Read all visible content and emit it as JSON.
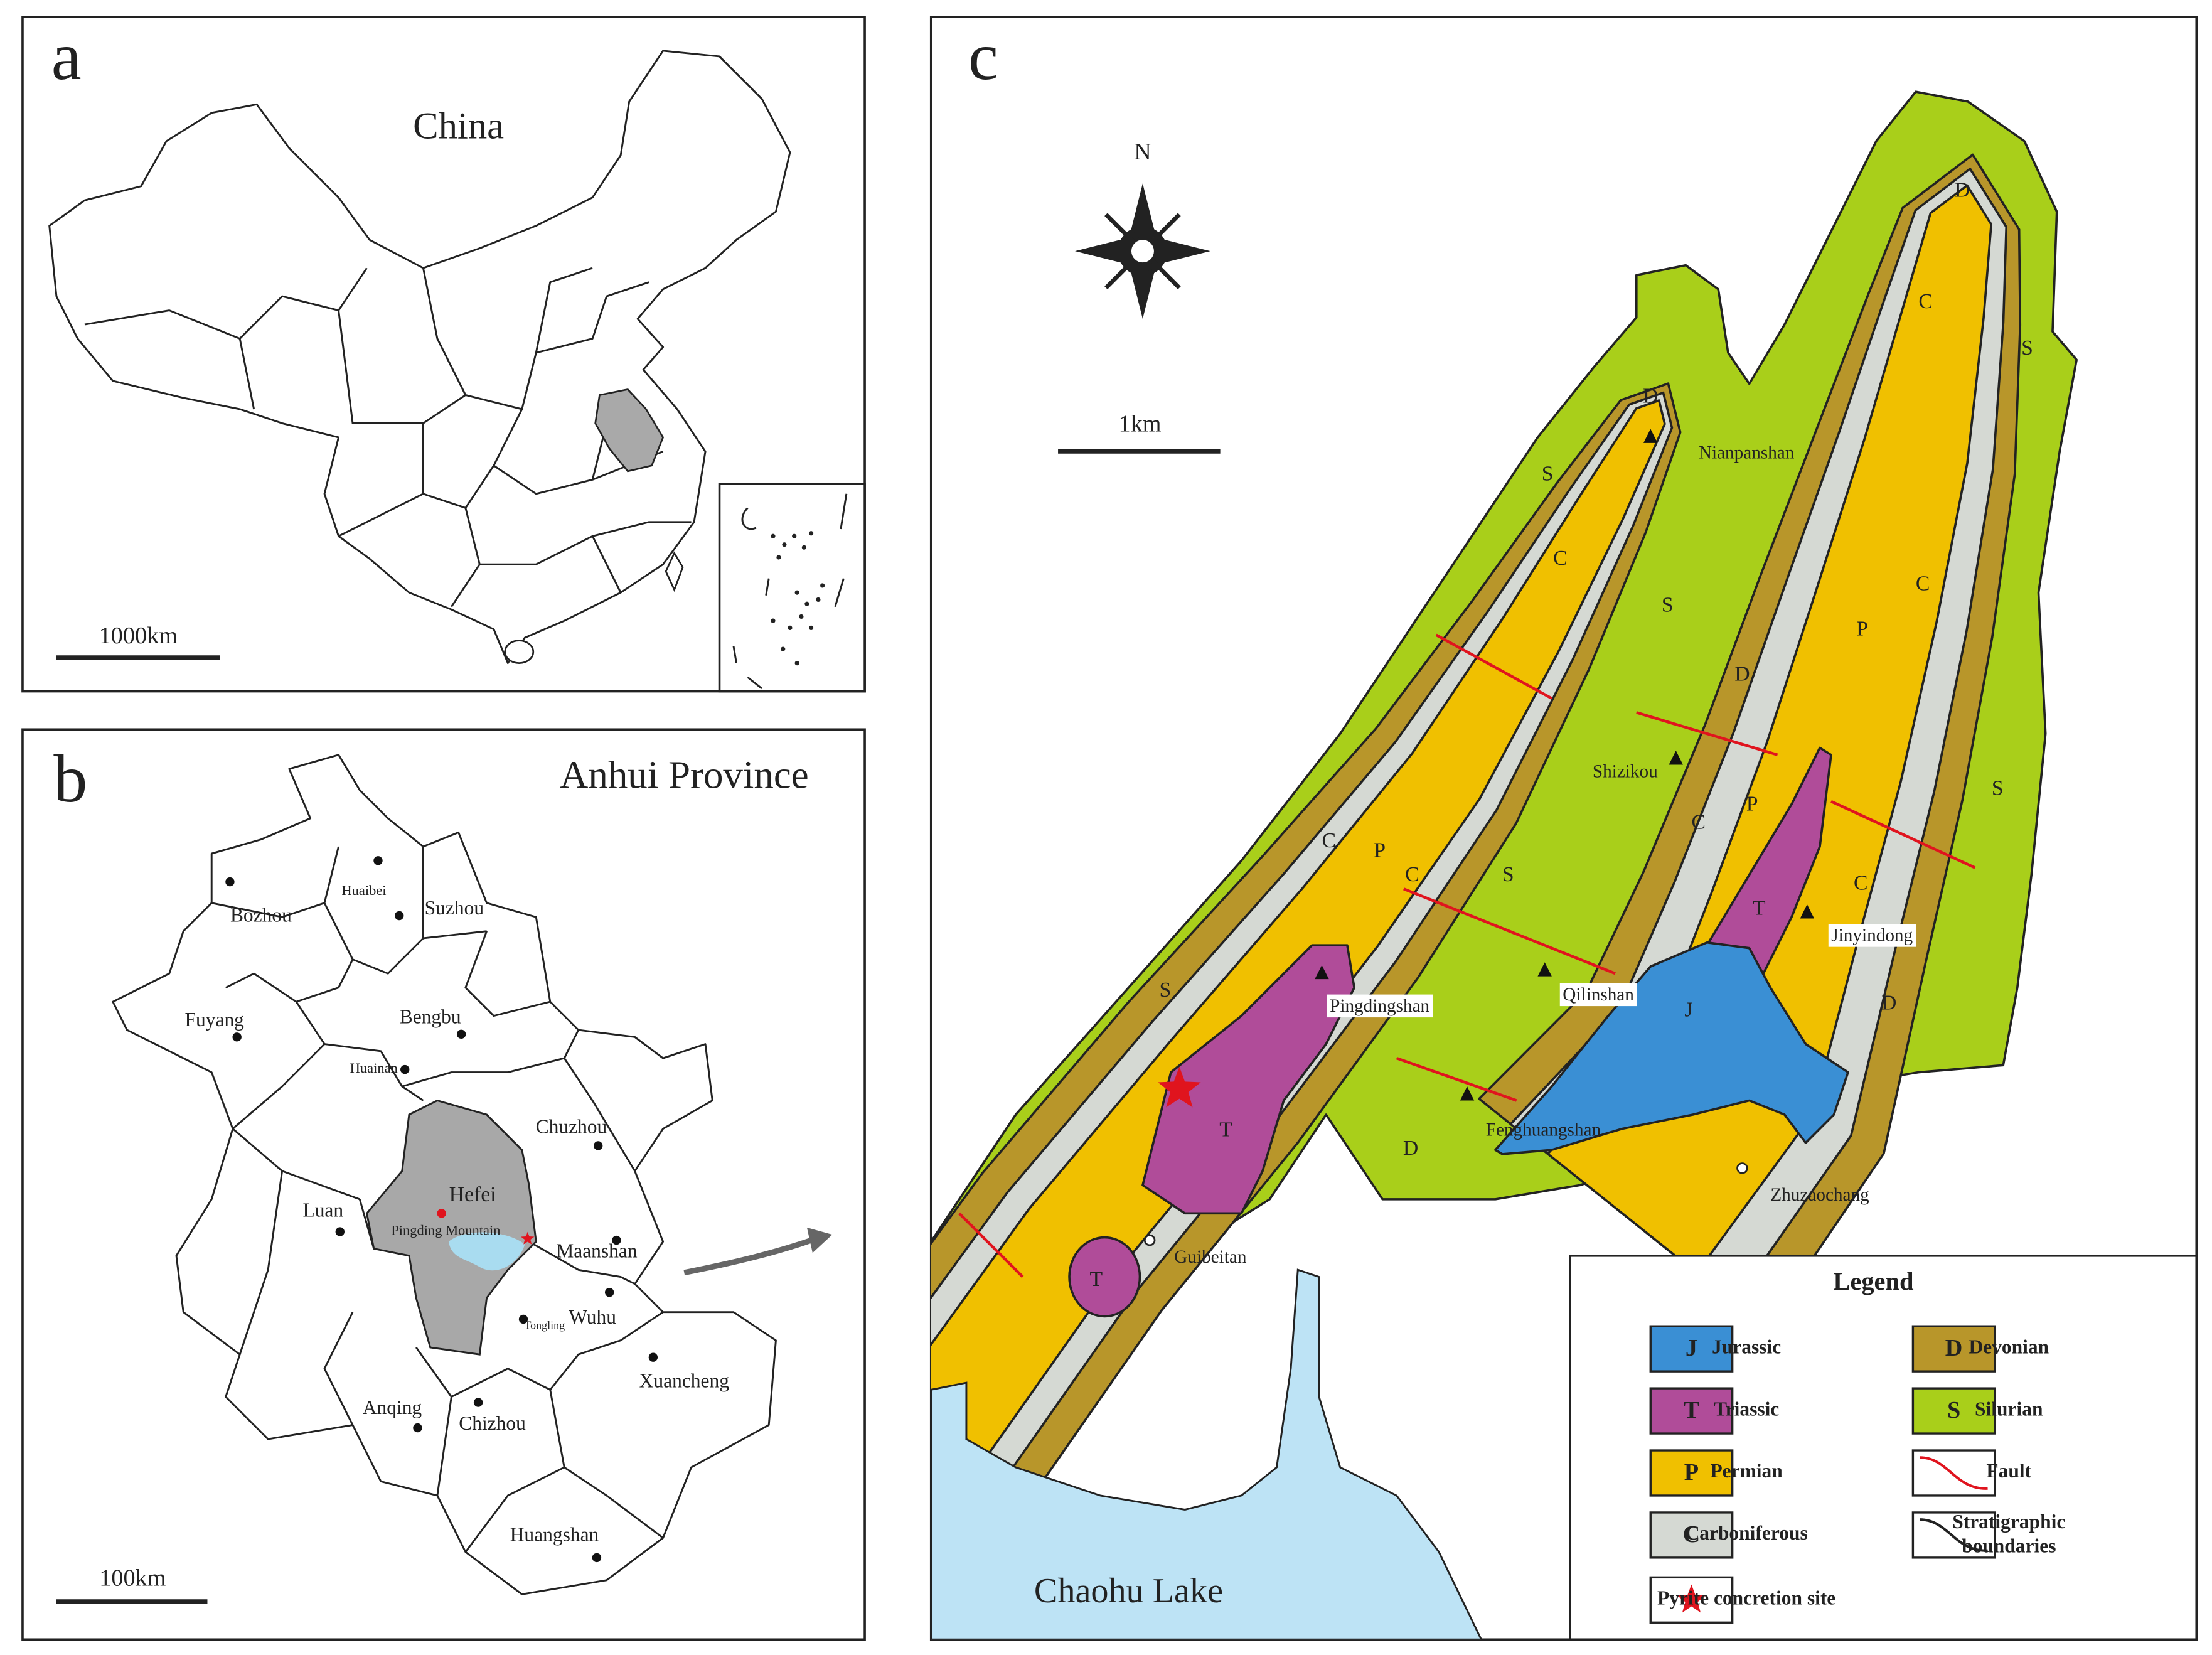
{
  "panel_a": {
    "letter": "a",
    "title": "China",
    "scale": "1000km"
  },
  "panel_b": {
    "letter": "b",
    "title": "Anhui Province",
    "scale": "100km",
    "cities": [
      "Bozhou",
      "Huaibei",
      "Suzhou",
      "Fuyang",
      "Bengbu",
      "Huainan",
      "Chuzhou",
      "Luan",
      "Hefei",
      "Pingding Mountain",
      "Maanshan",
      "Wuhu",
      "Tongling",
      "Anqing",
      "Chizhou",
      "Xuancheng",
      "Huangshan"
    ]
  },
  "panel_c": {
    "letter": "c",
    "north": "N",
    "scale": "1km",
    "lake": "Chaohu Lake",
    "unit_labels": [
      "D",
      "S",
      "C",
      "S",
      "D",
      "C",
      "S",
      "C",
      "P",
      "D",
      "P",
      "C",
      "T",
      "C",
      "D",
      "J",
      "S",
      "C",
      "P",
      "C",
      "S",
      "S",
      "T",
      "D",
      "T"
    ],
    "places": [
      "Nianpanshan",
      "Shizikou",
      "Jinyindong",
      "Qilinshan",
      "Pingdingshan",
      "Fenghuangshan",
      "Zhuzaochang",
      "Guibeitan"
    ],
    "legend": {
      "title": "Legend",
      "items": [
        {
          "symbol": "J",
          "label": "Jurassic",
          "color": "#3a8fd4"
        },
        {
          "symbol": "T",
          "label": "Triassic",
          "color": "#b04c99"
        },
        {
          "symbol": "P",
          "label": "Permian",
          "color": "#f0c000"
        },
        {
          "symbol": "C",
          "label": "Carboniferous",
          "color": "#d5d9d3"
        },
        {
          "symbol": "D",
          "label": "Devonian",
          "color": "#b8962a"
        },
        {
          "symbol": "S",
          "label": "Silurian",
          "color": "#a9cf1a"
        },
        {
          "label": "Fault"
        },
        {
          "label": [
            "Stratigraphic",
            "boundaries"
          ]
        },
        {
          "label": "Pyrite concretion site"
        }
      ]
    }
  }
}
